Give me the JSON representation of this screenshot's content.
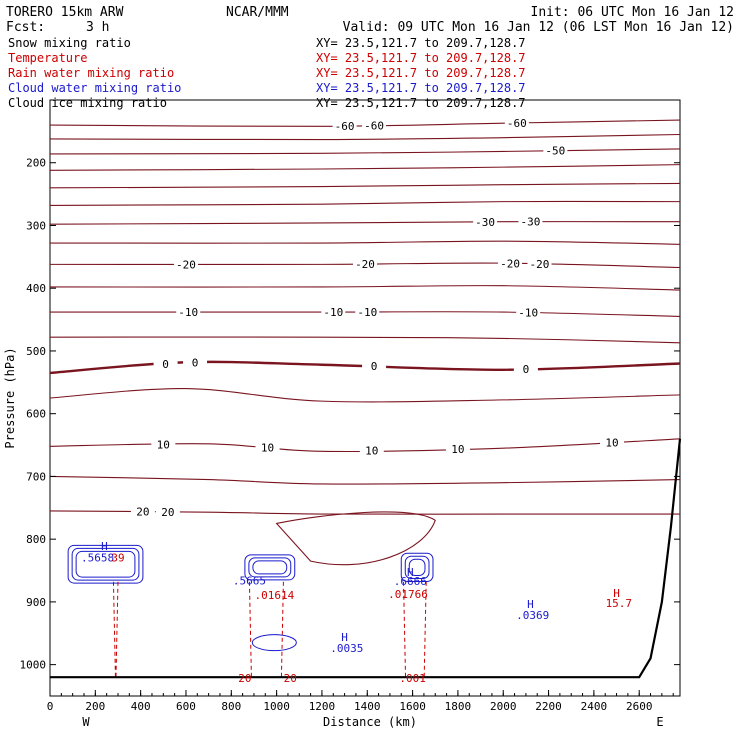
{
  "header": {
    "model": "TORERO  15km ARW",
    "org": "NCAR/MMM",
    "init": "Init: 06 UTC Mon 16 Jan 12",
    "fcst_label": "Fcst:",
    "fcst_value": "3 h",
    "valid": "Valid: 09 UTC Mon 16 Jan 12 (06 LST Mon 16 Jan 12)"
  },
  "fields": [
    {
      "name": "Snow mixing ratio",
      "color": "#000000",
      "xy": "XY=  23.5,121.7 to 209.7,128.7",
      "xy_color": "#000000"
    },
    {
      "name": "Temperature",
      "color": "#cc0000",
      "xy": "XY=  23.5,121.7 to 209.7,128.7",
      "xy_color": "#cc0000"
    },
    {
      "name": "Rain water mixing ratio",
      "color": "#cc0000",
      "xy": "XY=  23.5,121.7 to 209.7,128.7",
      "xy_color": "#cc0000"
    },
    {
      "name": "Cloud water mixing ratio",
      "color": "#1a1acc",
      "xy": "XY=  23.5,121.7 to 209.7,128.7",
      "xy_color": "#1a1acc"
    },
    {
      "name": "Cloud ice mixing ratio",
      "color": "#000000",
      "xy": "XY=  23.5,121.7 to 209.7,128.7",
      "xy_color": "#000000"
    }
  ],
  "chart_data": {
    "type": "line",
    "title": "",
    "xlabel": "Distance (km)",
    "ylabel": "Pressure (hPa)",
    "xlim": [
      0,
      2780
    ],
    "ylim": [
      1050,
      100
    ],
    "x_ticks": [
      0,
      200,
      400,
      600,
      800,
      1000,
      1200,
      1400,
      1600,
      1800,
      2000,
      2200,
      2400,
      2600
    ],
    "y_ticks": [
      200,
      300,
      400,
      500,
      600,
      700,
      800,
      900,
      1000
    ],
    "left_end": "W",
    "right_end": "E",
    "temperature_isotherms": [
      {
        "value": -60,
        "points": [
          [
            0,
            140
          ],
          [
            1200,
            142
          ],
          [
            2000,
            137
          ],
          [
            2780,
            132
          ]
        ],
        "labels": [
          {
            "x": 1300,
            "text": "-60"
          },
          {
            "x": 1430,
            "text": "-60"
          },
          {
            "x": 2060,
            "text": "-60"
          }
        ]
      },
      {
        "value": -55,
        "points": [
          [
            0,
            162
          ],
          [
            1200,
            163
          ],
          [
            2000,
            160
          ],
          [
            2780,
            155
          ]
        ]
      },
      {
        "value": -50,
        "points": [
          [
            0,
            186
          ],
          [
            1200,
            185
          ],
          [
            2000,
            182
          ],
          [
            2780,
            178
          ]
        ],
        "labels": [
          {
            "x": 2230,
            "text": "-50"
          }
        ]
      },
      {
        "value": -45,
        "points": [
          [
            0,
            212
          ],
          [
            1200,
            210
          ],
          [
            2000,
            207
          ],
          [
            2780,
            203
          ]
        ]
      },
      {
        "value": -40,
        "points": [
          [
            0,
            240
          ],
          [
            1200,
            238
          ],
          [
            2000,
            235
          ],
          [
            2780,
            233
          ]
        ]
      },
      {
        "value": -35,
        "points": [
          [
            0,
            268
          ],
          [
            1200,
            266
          ],
          [
            2000,
            262
          ],
          [
            2780,
            262
          ]
        ]
      },
      {
        "value": -30,
        "points": [
          [
            0,
            298
          ],
          [
            1200,
            296
          ],
          [
            2000,
            294
          ],
          [
            2780,
            294
          ]
        ],
        "labels": [
          {
            "x": 1920,
            "text": "-30"
          },
          {
            "x": 2120,
            "text": "-30"
          }
        ]
      },
      {
        "value": -25,
        "points": [
          [
            0,
            328
          ],
          [
            1200,
            328
          ],
          [
            2000,
            325
          ],
          [
            2780,
            330
          ]
        ]
      },
      {
        "value": -20,
        "points": [
          [
            0,
            362
          ],
          [
            1200,
            362
          ],
          [
            2000,
            360
          ],
          [
            2780,
            367
          ]
        ],
        "labels": [
          {
            "x": 600,
            "text": "-20"
          },
          {
            "x": 1390,
            "text": "-20"
          },
          {
            "x": 2030,
            "text": "-20"
          },
          {
            "x": 2160,
            "text": "-20"
          }
        ]
      },
      {
        "value": -15,
        "points": [
          [
            0,
            398
          ],
          [
            1200,
            398
          ],
          [
            2000,
            396
          ],
          [
            2780,
            403
          ]
        ]
      },
      {
        "value": -10,
        "points": [
          [
            0,
            438
          ],
          [
            1200,
            438
          ],
          [
            2000,
            438
          ],
          [
            2780,
            445
          ]
        ],
        "labels": [
          {
            "x": 610,
            "text": "-10"
          },
          {
            "x": 1250,
            "text": "-10"
          },
          {
            "x": 1400,
            "text": "-10"
          },
          {
            "x": 2110,
            "text": "-10"
          }
        ]
      },
      {
        "value": -5,
        "points": [
          [
            0,
            478
          ],
          [
            1200,
            478
          ],
          [
            2000,
            480
          ],
          [
            2780,
            487
          ]
        ]
      },
      {
        "value": 0,
        "points": [
          [
            0,
            535
          ],
          [
            600,
            518
          ],
          [
            1200,
            522
          ],
          [
            2000,
            530
          ],
          [
            2780,
            520
          ]
        ],
        "labels": [
          {
            "x": 510,
            "text": "0"
          },
          {
            "x": 640,
            "text": "0"
          },
          {
            "x": 1430,
            "text": "0"
          },
          {
            "x": 2100,
            "text": "0"
          }
        ]
      },
      {
        "value": 5,
        "points": [
          [
            0,
            575
          ],
          [
            600,
            560
          ],
          [
            1200,
            580
          ],
          [
            2000,
            578
          ],
          [
            2780,
            570
          ]
        ]
      },
      {
        "value": 10,
        "points": [
          [
            0,
            652
          ],
          [
            700,
            648
          ],
          [
            1200,
            660
          ],
          [
            2000,
            655
          ],
          [
            2780,
            640
          ]
        ],
        "labels": [
          {
            "x": 960,
            "text": "10"
          },
          {
            "x": 1420,
            "text": "10"
          },
          {
            "x": 1800,
            "text": "10"
          },
          {
            "x": 2480,
            "text": "10"
          },
          {
            "x": 500,
            "text": "10"
          }
        ]
      },
      {
        "value": 15,
        "points": [
          [
            0,
            700
          ],
          [
            700,
            705
          ],
          [
            1200,
            712
          ],
          [
            2000,
            710
          ],
          [
            2780,
            705
          ]
        ]
      },
      {
        "value": 20,
        "points": [
          [
            0,
            755
          ],
          [
            700,
            757
          ],
          [
            1200,
            760
          ],
          [
            2000,
            760
          ],
          [
            2780,
            760
          ]
        ],
        "labels": [
          {
            "x": 410,
            "text": "20"
          },
          {
            "x": 520,
            "text": "20"
          }
        ]
      }
    ],
    "annotations": [
      {
        "text": "H",
        "x": 240,
        "p": 817,
        "color": "#1a1acc"
      },
      {
        "text": ".5658",
        "x": 210,
        "p": 836,
        "color": "#1a1acc"
      },
      {
        "text": "39",
        "x": 300,
        "p": 836,
        "color": "#cc0000"
      },
      {
        "text": ".5665",
        "x": 880,
        "p": 872,
        "color": "#1a1acc"
      },
      {
        "text": ".01614",
        "x": 990,
        "p": 895,
        "color": "#cc0000"
      },
      {
        "text": "H",
        "x": 1590,
        "p": 859,
        "color": "#1a1acc"
      },
      {
        "text": ".6666",
        "x": 1590,
        "p": 873,
        "color": "#1a1acc"
      },
      {
        "text": ".01766",
        "x": 1580,
        "p": 894,
        "color": "#cc0000"
      },
      {
        "text": "H",
        "x": 1300,
        "p": 962,
        "color": "#1a1acc"
      },
      {
        "text": ".0035",
        "x": 1310,
        "p": 980,
        "color": "#1a1acc"
      },
      {
        "text": "H",
        "x": 2120,
        "p": 910,
        "color": "#1a1acc"
      },
      {
        "text": ".0369",
        "x": 2130,
        "p": 927,
        "color": "#1a1acc"
      },
      {
        "text": "H",
        "x": 2500,
        "p": 892,
        "color": "#cc0000"
      },
      {
        "text": "15.7",
        "x": 2510,
        "p": 908,
        "color": "#cc0000"
      },
      {
        "text": ".001",
        "x": 1600,
        "p": 1028,
        "color": "#cc0000"
      },
      {
        "text": "20",
        "x": 860,
        "p": 1028,
        "color": "#cc0000"
      },
      {
        "text": "20",
        "x": 1060,
        "p": 1028,
        "color": "#cc0000"
      }
    ],
    "terrain_surface": [
      [
        0,
        1020
      ],
      [
        2500,
        1020
      ],
      [
        2600,
        1020
      ],
      [
        2650,
        990
      ],
      [
        2700,
        900
      ],
      [
        2740,
        780
      ],
      [
        2780,
        640
      ]
    ]
  }
}
